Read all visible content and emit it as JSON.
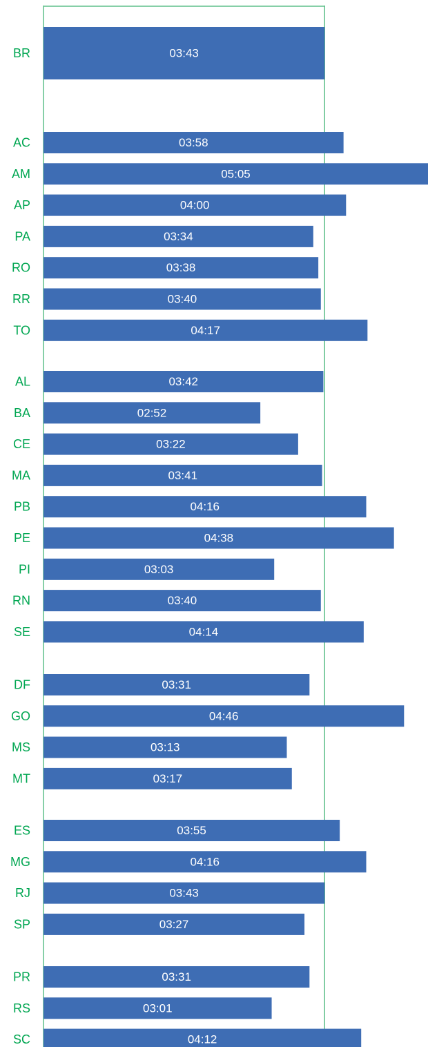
{
  "chart_data": {
    "type": "bar",
    "orientation": "horizontal",
    "colors": {
      "bar": "#3e6db4",
      "label": "#00a651",
      "reference_line": "#5fbf8a",
      "value_text": "#ffffff"
    },
    "reference_line": {
      "value_seconds": 223
    },
    "groups": [
      {
        "bars": [
          {
            "category": "BR",
            "label": "03:43",
            "seconds": 223
          }
        ]
      },
      {
        "bars": [
          {
            "category": "AC",
            "label": "03:58",
            "seconds": 238
          },
          {
            "category": "AM",
            "label": "05:05",
            "seconds": 305
          },
          {
            "category": "AP",
            "label": "04:00",
            "seconds": 240
          },
          {
            "category": "PA",
            "label": "03:34",
            "seconds": 214
          },
          {
            "category": "RO",
            "label": "03:38",
            "seconds": 218
          },
          {
            "category": "RR",
            "label": "03:40",
            "seconds": 220
          },
          {
            "category": "TO",
            "label": "04:17",
            "seconds": 257
          }
        ]
      },
      {
        "bars": [
          {
            "category": "AL",
            "label": "03:42",
            "seconds": 222
          },
          {
            "category": "BA",
            "label": "02:52",
            "seconds": 172
          },
          {
            "category": "CE",
            "label": "03:22",
            "seconds": 202
          },
          {
            "category": "MA",
            "label": "03:41",
            "seconds": 221
          },
          {
            "category": "PB",
            "label": "04:16",
            "seconds": 256
          },
          {
            "category": "PE",
            "label": "04:38",
            "seconds": 278
          },
          {
            "category": "PI",
            "label": "03:03",
            "seconds": 183
          },
          {
            "category": "RN",
            "label": "03:40",
            "seconds": 220
          },
          {
            "category": "SE",
            "label": "04:14",
            "seconds": 254
          }
        ]
      },
      {
        "bars": [
          {
            "category": "DF",
            "label": "03:31",
            "seconds": 211
          },
          {
            "category": "GO",
            "label": "04:46",
            "seconds": 286
          },
          {
            "category": "MS",
            "label": "03:13",
            "seconds": 193
          },
          {
            "category": "MT",
            "label": "03:17",
            "seconds": 197
          }
        ]
      },
      {
        "bars": [
          {
            "category": "ES",
            "label": "03:55",
            "seconds": 235
          },
          {
            "category": "MG",
            "label": "04:16",
            "seconds": 256
          },
          {
            "category": "RJ",
            "label": "03:43",
            "seconds": 223
          },
          {
            "category": "SP",
            "label": "03:27",
            "seconds": 207
          }
        ]
      },
      {
        "bars": [
          {
            "category": "PR",
            "label": "03:31",
            "seconds": 211
          },
          {
            "category": "RS",
            "label": "03:01",
            "seconds": 181
          },
          {
            "category": "SC",
            "label": "04:12",
            "seconds": 252
          }
        ]
      }
    ]
  }
}
